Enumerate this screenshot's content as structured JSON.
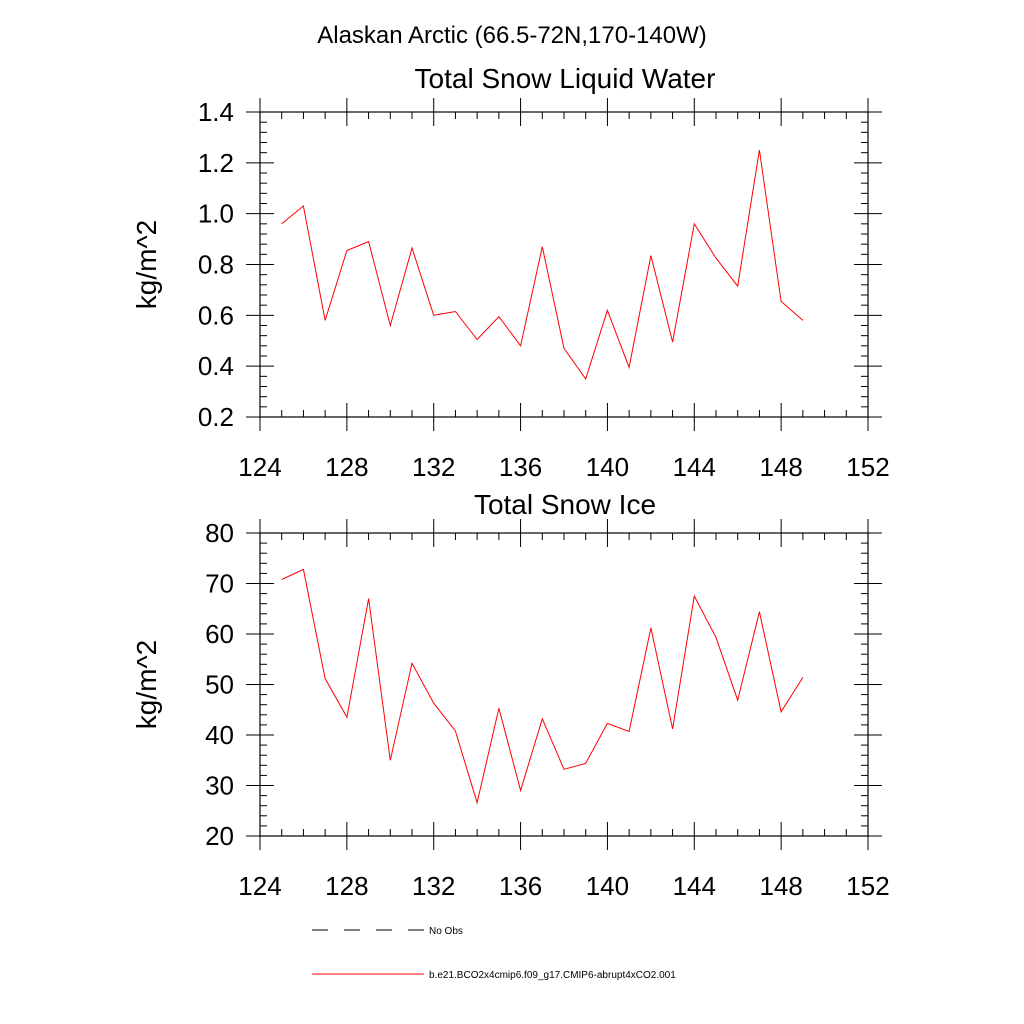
{
  "figure": {
    "title": "Alaskan Arctic (66.5-72N,170-140W)"
  },
  "colors": {
    "model_line": "#ff0000",
    "obs_line": "#000000"
  },
  "legend": {
    "entries": [
      {
        "label": "No Obs",
        "style": "dashed",
        "color": "#000000"
      },
      {
        "label": "b.e21.BCO2x4cmip6.f09_g17.CMIP6-abrupt4xCO2.001",
        "style": "solid",
        "color": "#ff0000"
      }
    ]
  },
  "chart_data": [
    {
      "type": "line",
      "title": "Total Snow Liquid Water",
      "xlabel": "",
      "ylabel": "kg/m^2",
      "xlim": [
        124,
        152
      ],
      "ylim": [
        0.2,
        1.4
      ],
      "xticks": [
        124,
        128,
        132,
        136,
        140,
        144,
        148,
        152
      ],
      "xtick_labels": [
        "124",
        "128",
        "132",
        "136",
        "140",
        "144",
        "148",
        "152"
      ],
      "yticks": [
        0.2,
        0.4,
        0.6,
        0.8,
        1.0,
        1.2,
        1.4
      ],
      "ytick_labels": [
        "0.2",
        "0.4",
        "0.6",
        "0.8",
        "1.0",
        "1.2",
        "1.4"
      ],
      "grid": false,
      "x": [
        125,
        126,
        127,
        128,
        129,
        130,
        131,
        132,
        133,
        134,
        135,
        136,
        137,
        138,
        139,
        140,
        141,
        142,
        143,
        144,
        145,
        146,
        147,
        148,
        149
      ],
      "series": [
        {
          "color": "#ff0000",
          "values": [
            0.96,
            1.03,
            0.58,
            0.855,
            0.89,
            0.56,
            0.865,
            0.6,
            0.615,
            0.505,
            0.595,
            0.48,
            0.87,
            0.47,
            0.35,
            0.62,
            0.395,
            0.835,
            0.495,
            0.96,
            0.825,
            0.715,
            1.25,
            0.655,
            0.58
          ]
        }
      ]
    },
    {
      "type": "line",
      "title": "Total Snow Ice",
      "xlabel": "",
      "ylabel": "kg/m^2",
      "xlim": [
        124,
        152
      ],
      "ylim": [
        20,
        80
      ],
      "xticks": [
        124,
        128,
        132,
        136,
        140,
        144,
        148,
        152
      ],
      "xtick_labels": [
        "124",
        "128",
        "132",
        "136",
        "140",
        "144",
        "148",
        "152"
      ],
      "yticks": [
        20,
        30,
        40,
        50,
        60,
        70,
        80
      ],
      "ytick_labels": [
        "20",
        "30",
        "40",
        "50",
        "60",
        "70",
        "80"
      ],
      "grid": false,
      "x": [
        125,
        126,
        127,
        128,
        129,
        130,
        131,
        132,
        133,
        134,
        135,
        136,
        137,
        138,
        139,
        140,
        141,
        142,
        143,
        144,
        145,
        146,
        147,
        148,
        149
      ],
      "series": [
        {
          "color": "#ff0000",
          "values": [
            70.8,
            72.8,
            51.2,
            43.5,
            67.0,
            35.0,
            54.2,
            46.3,
            40.8,
            26.6,
            45.3,
            29.0,
            43.2,
            33.2,
            34.4,
            42.3,
            40.7,
            61.2,
            41.2,
            67.5,
            59.3,
            46.9,
            64.4,
            44.6,
            51.4
          ]
        }
      ]
    }
  ]
}
